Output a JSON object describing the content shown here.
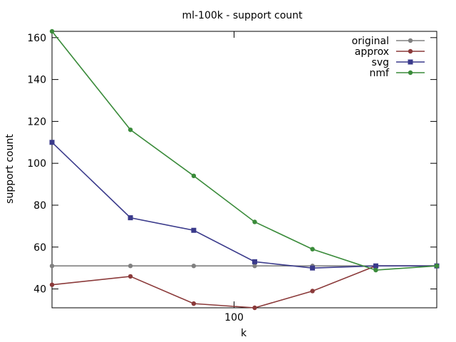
{
  "chart_data": {
    "type": "line",
    "title": "ml-100k - support count",
    "xlabel": "k",
    "ylabel": "support count",
    "xscale": "log",
    "x": [
      20,
      40,
      70,
      120,
      200,
      350,
      600
    ],
    "xlim": [
      20,
      600
    ],
    "ylim": [
      31,
      163
    ],
    "yticks": [
      40,
      60,
      80,
      100,
      120,
      140,
      160
    ],
    "xticks": [
      100
    ],
    "legend_position": "top-right",
    "grid": false,
    "series": [
      {
        "name": "original",
        "color": "#808080",
        "marker": "circle",
        "values": [
          51,
          51,
          51,
          51,
          51,
          51,
          51
        ]
      },
      {
        "name": "approx",
        "color": "#8b3a3a",
        "marker": "circle",
        "values": [
          42,
          46,
          33,
          31,
          39,
          51,
          51
        ]
      },
      {
        "name": "svg",
        "color": "#3a3a8b",
        "marker": "square",
        "values": [
          110,
          74,
          68,
          53,
          50,
          51,
          51
        ]
      },
      {
        "name": "nmf",
        "color": "#3a8b3a",
        "marker": "circle",
        "values": [
          163,
          116,
          94,
          72,
          59,
          49,
          51
        ]
      }
    ]
  }
}
